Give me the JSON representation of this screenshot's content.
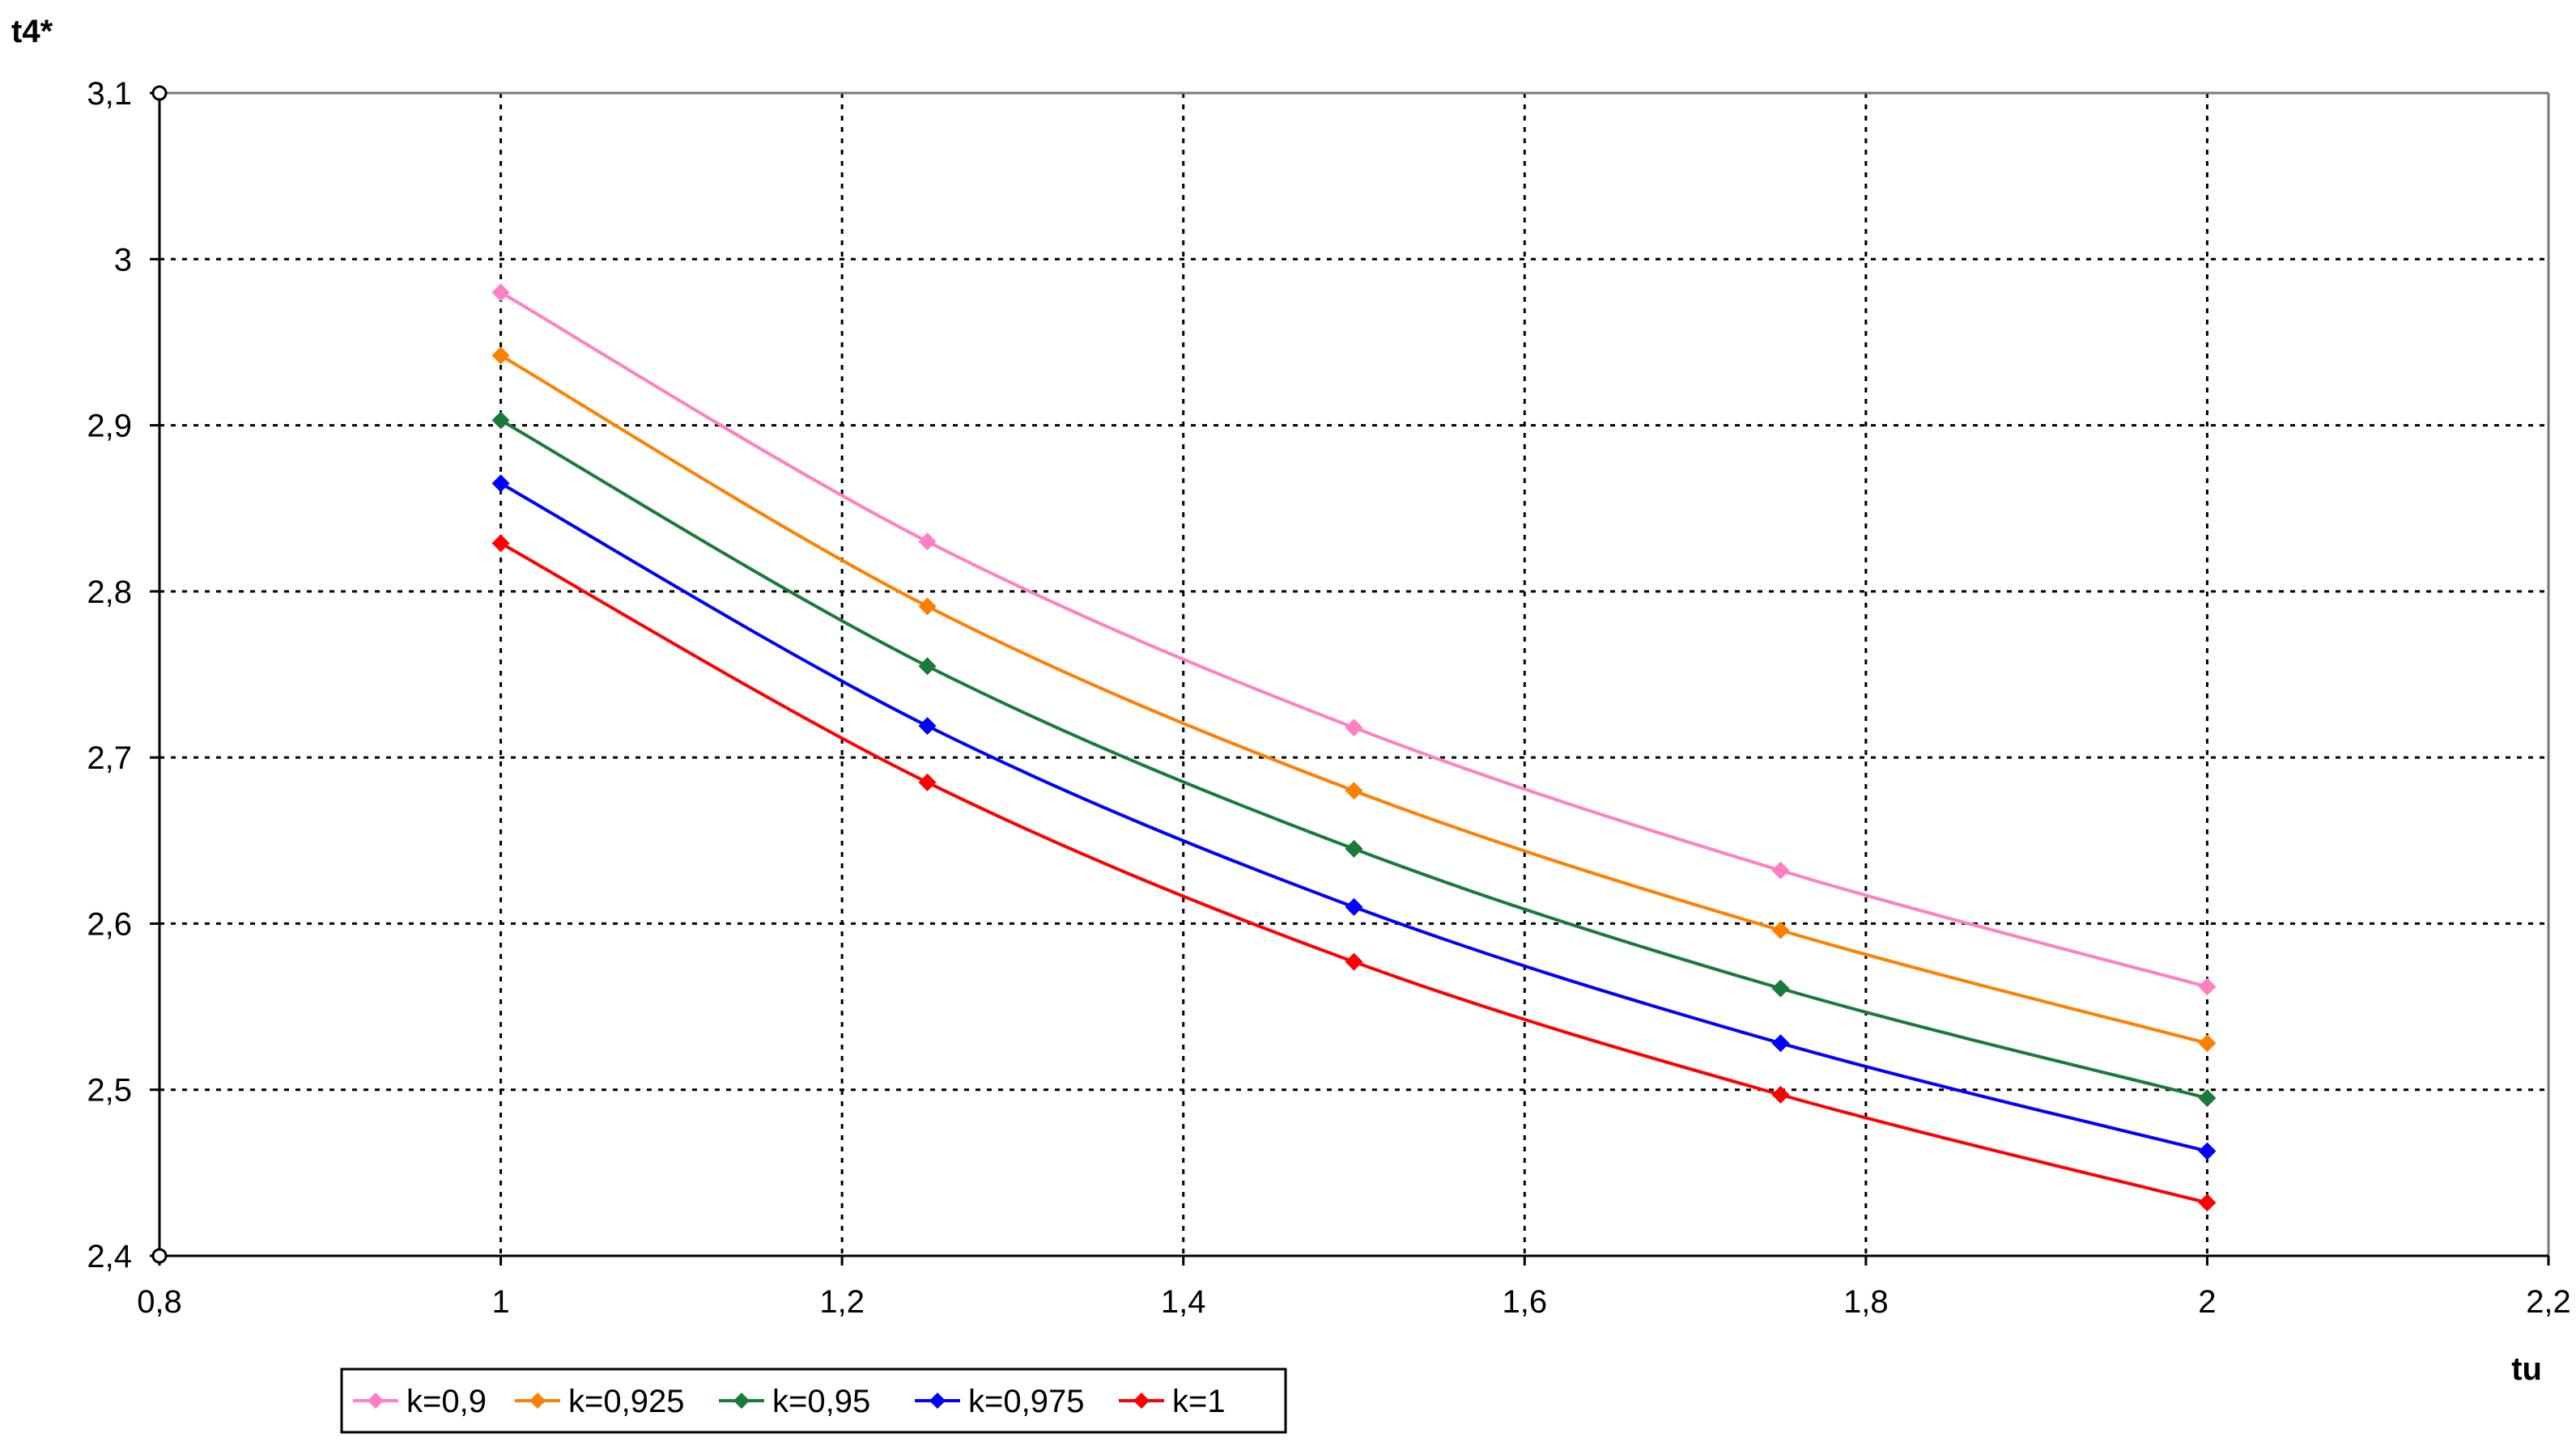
{
  "chart_data": {
    "type": "line",
    "xlabel": "tu",
    "ylabel": "t4*",
    "xlim": [
      0.8,
      2.2
    ],
    "ylim": [
      2.4,
      3.1
    ],
    "x_ticks": [
      "0,8",
      "1",
      "1,2",
      "1,4",
      "1,6",
      "1,8",
      "2",
      "2,2"
    ],
    "y_ticks": [
      "2,4",
      "2,5",
      "2,6",
      "2,7",
      "2,8",
      "2,9",
      "3",
      "3,1"
    ],
    "grid": "dotted",
    "legend_position": "bottom-left",
    "x": [
      1,
      1.25,
      1.5,
      1.75,
      2
    ],
    "series": [
      {
        "name": "k=0,9",
        "color": "#ff80c0",
        "values": [
          2.98,
          2.83,
          2.718,
          2.632,
          2.562
        ]
      },
      {
        "name": "k=0,925",
        "color": "#ff8000",
        "values": [
          2.942,
          2.791,
          2.68,
          2.596,
          2.528
        ]
      },
      {
        "name": "k=0,95",
        "color": "#1a7a3a",
        "values": [
          2.903,
          2.755,
          2.645,
          2.561,
          2.495
        ]
      },
      {
        "name": "k=0,975",
        "color": "#0000ff",
        "values": [
          2.865,
          2.719,
          2.61,
          2.528,
          2.463
        ]
      },
      {
        "name": "k=1",
        "color": "#ff0000",
        "values": [
          2.829,
          2.685,
          2.577,
          2.497,
          2.432
        ]
      }
    ]
  }
}
